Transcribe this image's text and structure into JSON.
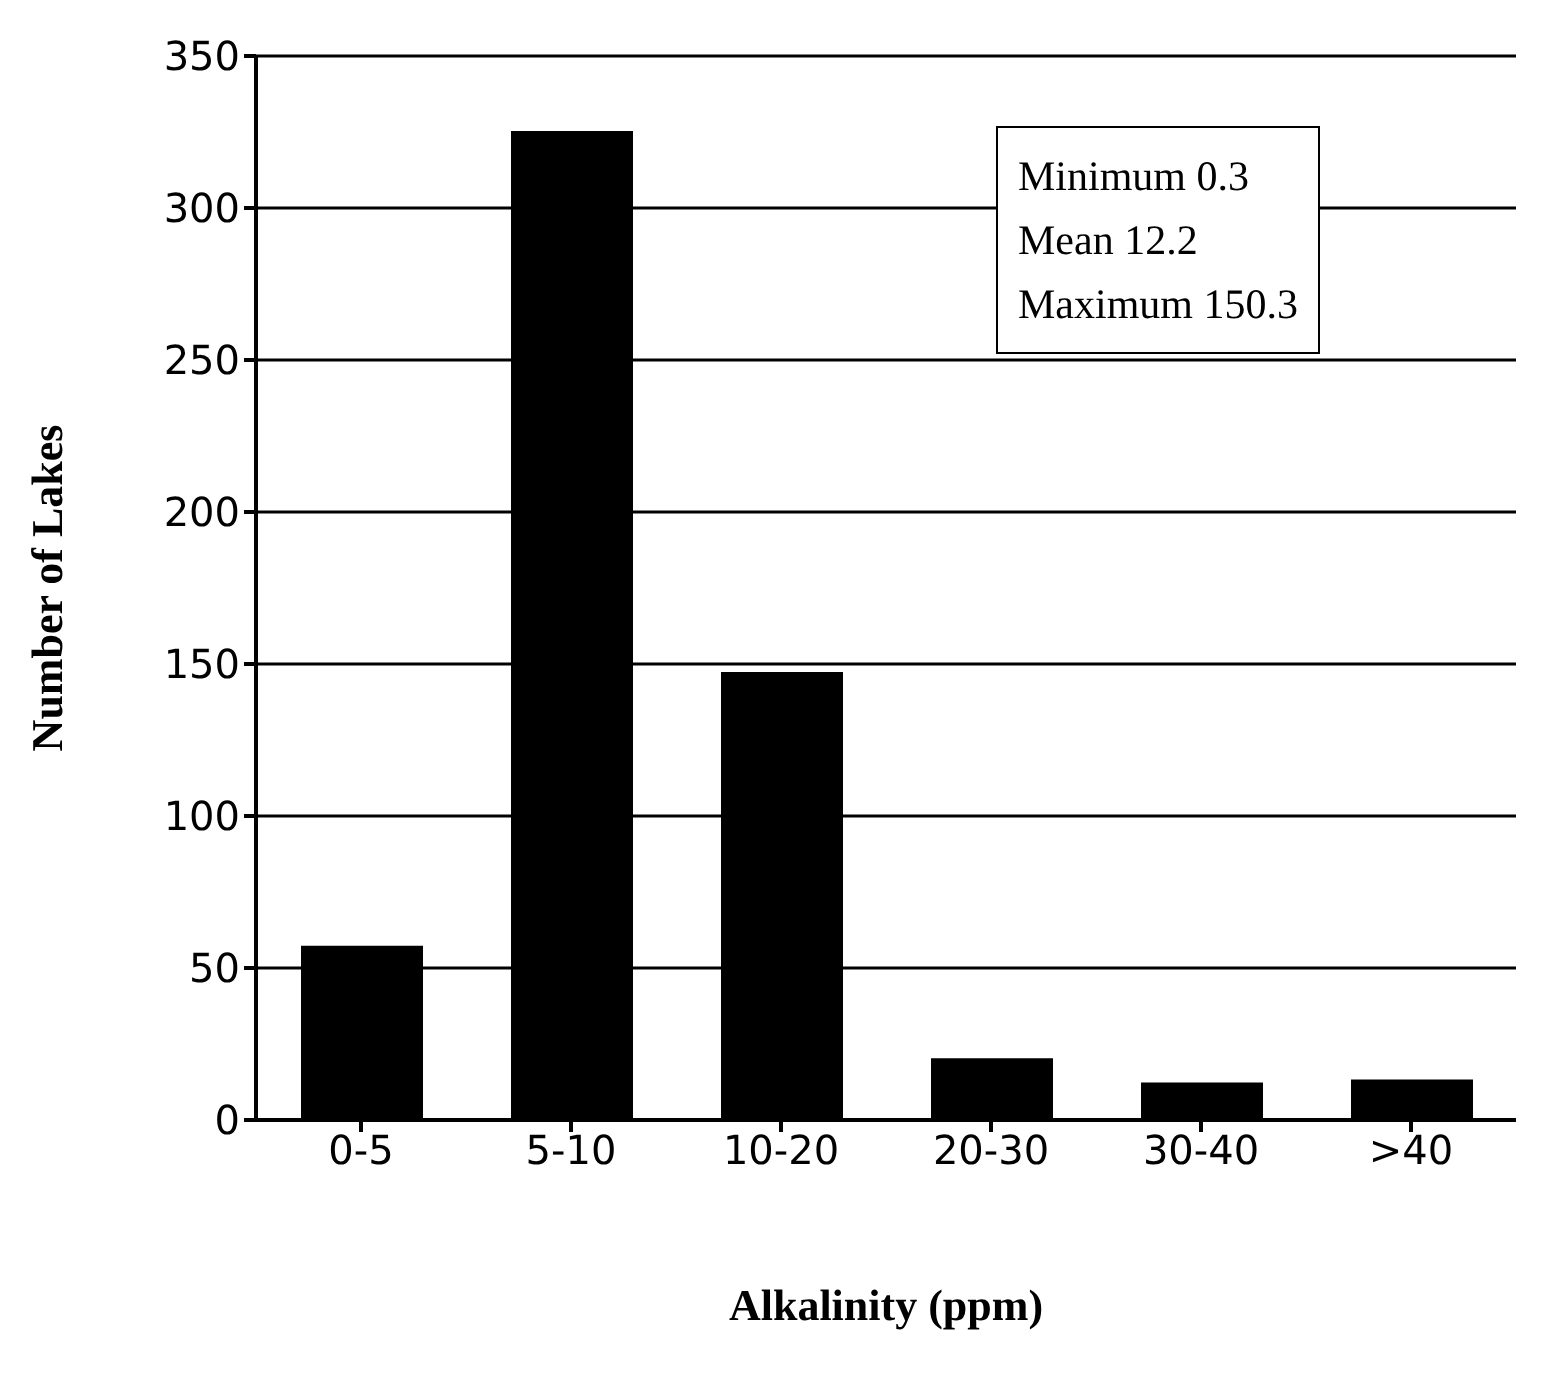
{
  "chart_data": {
    "type": "bar",
    "xlabel": "Alkalinity (ppm)",
    "ylabel": "Number of Lakes",
    "categories": [
      "0-5",
      "5-10",
      "10-20",
      "20-30",
      "30-40",
      ">40"
    ],
    "values": [
      57,
      325,
      147,
      20,
      12,
      13
    ],
    "color": "#000000",
    "ylim": [
      0,
      350
    ],
    "yticks": [
      0,
      50,
      100,
      150,
      200,
      250,
      300,
      350
    ],
    "grid": "y",
    "annotations": [
      "Minimum 0.3",
      "Mean 12.2",
      "Maximum 150.3"
    ]
  }
}
